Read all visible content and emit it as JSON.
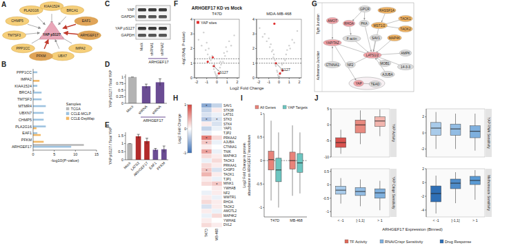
{
  "panel_labels": [
    "A",
    "B",
    "C",
    "D",
    "E",
    "F",
    "G",
    "H",
    "I",
    "J"
  ],
  "diagrams": {
    "network": {
      "center": "YAP pS127",
      "nodes": [
        {
          "label": "KIAA1524",
          "highlight": false
        },
        {
          "label": "BRCA1",
          "highlight": false
        },
        {
          "label": "EAF1",
          "highlight": true
        },
        {
          "label": "ARHGEF17",
          "highlight": true
        },
        {
          "label": "IMPA2",
          "highlight": false
        },
        {
          "label": "UBX7",
          "highlight": false
        },
        {
          "label": "PFKM",
          "highlight": true
        },
        {
          "label": "PPP1CC",
          "highlight": false
        },
        {
          "label": "TM7SF3",
          "highlight": false
        },
        {
          "label": "CHMP5",
          "highlight": false
        },
        {
          "label": "PLA2G16",
          "highlight": false
        }
      ]
    },
    "blot": {
      "groups": [
        [
          "YAP",
          "GAPDH"
        ],
        [
          "YAP pS127",
          "GAPDH"
        ]
      ],
      "lanes": [
        "Mock",
        "shRNA1",
        "shRNA2"
      ],
      "lane_group": "ARHGEF17"
    },
    "pathway": {
      "regions": [
        "Tight Junction",
        "Adherence Junction"
      ],
      "nodes": [
        {
          "label": "GPCR",
          "kind": "other"
        },
        {
          "label": "RASSF1A",
          "kind": "kinase"
        },
        {
          "label": "TAOK1",
          "kind": "kinase"
        },
        {
          "label": "RHOA",
          "kind": "core"
        },
        {
          "label": "PKA",
          "kind": "other"
        },
        {
          "label": "MST1/2",
          "kind": "kinase"
        },
        {
          "label": "TAOK2",
          "kind": "kinase"
        },
        {
          "label": "MAP4K",
          "kind": "kinase"
        },
        {
          "label": "AMOT",
          "kind": "core"
        },
        {
          "label": "YAP/TAZ",
          "kind": "core"
        },
        {
          "label": "F-actin",
          "kind": "other"
        },
        {
          "label": "SAV1",
          "kind": "other"
        },
        {
          "label": "CTNNA1",
          "kind": "other"
        },
        {
          "label": "NF2",
          "kind": "other"
        },
        {
          "label": "LATS1/2",
          "kind": "core"
        },
        {
          "label": "MOB1",
          "kind": "other"
        },
        {
          "label": "AMPK",
          "kind": "other"
        },
        {
          "label": "AJUBA",
          "kind": "other"
        },
        {
          "label": "14-3-3",
          "kind": "other"
        },
        {
          "label": "YAP",
          "kind": "core"
        },
        {
          "label": "TEAD",
          "kind": "other"
        }
      ],
      "edges": [
        [
          0,
          3
        ],
        [
          0,
          4
        ],
        [
          3,
          10
        ],
        [
          4,
          14
        ],
        [
          1,
          5
        ],
        [
          2,
          5
        ],
        [
          6,
          5
        ],
        [
          7,
          14
        ],
        [
          5,
          14
        ],
        [
          11,
          14
        ],
        [
          15,
          14
        ],
        [
          13,
          14
        ],
        [
          10,
          14
        ],
        [
          16,
          14
        ],
        [
          17,
          14
        ],
        [
          14,
          9
        ],
        [
          14,
          18
        ],
        [
          8,
          9
        ],
        [
          12,
          9
        ],
        [
          9,
          19
        ],
        [
          19,
          20
        ]
      ]
    }
  },
  "chart_data": [
    {
      "type": "bar",
      "orientation": "horizontal",
      "categories": [
        "PPP1CC",
        "IMPA2",
        "KIAA1524",
        "BRCA1",
        "TM7SF3",
        "MTMR4",
        "UBXN7",
        "CHMP5",
        "PLA2G16",
        "EAF1",
        "PFKM",
        "ARHGEF17"
      ],
      "series": [
        {
          "name": "TCGA",
          "color": "#b9b9b9",
          "values": [
            0,
            0,
            0,
            0.3,
            0,
            0,
            0,
            0,
            0,
            0,
            0,
            12
          ]
        },
        {
          "name": "CCLE-MCLP",
          "color": "#9ec3e0",
          "values": [
            1.0,
            0,
            1.0,
            2.0,
            2.0,
            3.0,
            2.5,
            2.5,
            3.0,
            1.0,
            0,
            9
          ]
        },
        {
          "name": "CCLE-DepMap",
          "color": "#f2b866",
          "values": [
            0,
            1.5,
            0,
            0,
            0,
            0,
            0,
            0,
            0.8,
            1.8,
            2.5,
            0
          ]
        }
      ],
      "xlabel": "-log10(P-value)",
      "xlim": [
        0,
        15
      ],
      "xticks": [
        0,
        5,
        10,
        15
      ],
      "legend_title": "Samples",
      "legend": "right"
    },
    {
      "type": "bar",
      "categories": [
        "Mock",
        "shRNA",
        "shRNA"
      ],
      "values": [
        1,
        0.65,
        0.8
      ],
      "errors": [
        0,
        0.08,
        0.13
      ],
      "colors": [
        "#b3b3b3",
        "#6a4c93",
        "#6a4c93"
      ],
      "ylabel": "YAP pS127 / Total YAP",
      "ylim": [
        0,
        1.1
      ],
      "yticks": [
        0,
        0.25,
        0.5,
        0.75,
        1
      ],
      "annotations": [
        {
          "text": "ARHGEF17"
        }
      ]
    },
    {
      "type": "bar",
      "categories": [
        "Mock",
        "LATS2",
        "ARHGEF17",
        "EAF1",
        "PFKM"
      ],
      "values": [
        1,
        1.45,
        1.15,
        0.62,
        0.65
      ],
      "errors": [
        0,
        0.12,
        0.18,
        0.08,
        0.2
      ],
      "colors": [
        "#b3b3b3",
        "#b22b2b",
        "#b22b2b",
        "#6a4c93",
        "#6a4c93"
      ],
      "ylabel": "YAP pS127 / Total YAP",
      "ylim": [
        0,
        1.7
      ],
      "yticks": [
        0,
        0.5,
        1,
        1.5
      ]
    },
    {
      "type": "scatter",
      "title": "ARHGEF17 KD vs Mock",
      "subtitle": "T47D",
      "xlabel": "Log2 Fold Change",
      "ylabel": "-log10(Adj. P-value)",
      "xlim": [
        -2.2,
        2.2
      ],
      "xticks": [
        -2,
        -1,
        0,
        1,
        2
      ],
      "ylim": [
        0,
        4
      ],
      "yticks": [
        0,
        1,
        2,
        3,
        4
      ],
      "hlines": [
        1,
        1.3
      ],
      "series": [
        {
          "color": "#c4c4c4",
          "x": [
            -1.8,
            -1.5,
            -1.3,
            -1.1,
            -1.0,
            -0.9,
            -0.8,
            -0.7,
            -0.6,
            -0.5,
            -0.45,
            -0.4,
            -0.3,
            -0.25,
            -0.2,
            -0.15,
            -0.1,
            -0.05,
            0,
            0.05,
            0.1,
            0.15,
            0.2,
            0.3,
            0.35,
            0.4,
            0.5,
            0.6,
            0.7,
            0.8,
            0.9,
            1.0,
            1.2,
            1.4,
            1.7
          ],
          "values": [
            2.6,
            2.2,
            3.1,
            1.9,
            2.4,
            1.6,
            2.0,
            1.4,
            1.2,
            1.0,
            1.5,
            0.8,
            0.6,
            0.9,
            0.4,
            0.3,
            0.2,
            0.1,
            0.05,
            0.15,
            0.3,
            0.5,
            0.35,
            0.7,
            1.1,
            0.9,
            1.3,
            1.1,
            1.7,
            1.5,
            2.1,
            1.8,
            2.5,
            2.2,
            2.9
          ]
        },
        {
          "name": "YAP sites",
          "color": "#e03030",
          "x": [
            -0.9,
            -0.4,
            -0.3,
            0.2
          ],
          "values": [
            1.1,
            1.4,
            0.8,
            0.3
          ]
        }
      ],
      "annotations": [
        {
          "text": "S127",
          "x": -0.3,
          "y": 0.8
        }
      ]
    },
    {
      "type": "scatter",
      "subtitle": "MDA-MB-468",
      "xlim": [
        -2.2,
        2.2
      ],
      "xticks": [
        -2,
        -1,
        0,
        1,
        2
      ],
      "ylim": [
        0,
        4
      ],
      "yticks": [
        0,
        1,
        2,
        3,
        4
      ],
      "hlines": [
        1,
        1.3
      ],
      "series": [
        {
          "color": "#c4c4c4",
          "x": [
            -1.9,
            -1.6,
            -1.4,
            -1.2,
            -1.0,
            -0.9,
            -0.8,
            -0.7,
            -0.6,
            -0.55,
            -0.5,
            -0.4,
            -0.35,
            -0.3,
            -0.2,
            -0.15,
            -0.1,
            -0.05,
            0,
            0.05,
            0.1,
            0.15,
            0.2,
            0.25,
            0.3,
            0.4,
            0.5,
            0.6,
            0.7,
            0.8,
            1.0,
            1.1,
            1.3,
            1.5,
            1.8
          ],
          "values": [
            3.4,
            2.8,
            3.0,
            2.5,
            2.7,
            2.1,
            2.3,
            1.8,
            1.9,
            1.4,
            1.6,
            1.2,
            0.9,
            0.8,
            0.5,
            0.4,
            0.2,
            0.1,
            0.05,
            0.1,
            0.25,
            0.35,
            0.6,
            0.5,
            0.9,
            1.0,
            1.3,
            1.2,
            1.6,
            1.9,
            2.2,
            2.0,
            2.6,
            2.4,
            3.2
          ]
        },
        {
          "color": "#e03030",
          "x": [
            -0.45,
            -0.3,
            0.1,
            0.35
          ],
          "values": [
            3.7,
            1.0,
            0.3,
            0.5
          ]
        }
      ],
      "annotations": [
        {
          "text": "S127",
          "x": -0.3,
          "y": 1.0
        }
      ]
    },
    {
      "type": "heatmap",
      "rows": [
        "SAV1",
        "STK38",
        "LATS1",
        "STK3",
        "STK4",
        "YAP1",
        "TJP2",
        "PRKAA2",
        "AJUBA",
        "CTNNA1",
        "TNIK",
        "MAP4K3",
        "TAOK3",
        "PRKAA1",
        "CASP3",
        "TAOK1",
        "TJP1",
        "MINK1",
        "YWHAB",
        "NF2",
        "WWTR1",
        "RHOA",
        "TAOK2",
        "AMOTL2",
        "MAP4K2",
        "YWHAE",
        "DVL2"
      ],
      "columns": [
        "T47D",
        "MB-468"
      ],
      "cells": [
        [
          -0.6,
          -0.3
        ],
        [
          -0.3,
          0.1
        ],
        [
          -0.2,
          -0.1
        ],
        [
          -0.4,
          -0.2
        ],
        [
          0.1,
          -0.2
        ],
        [
          -0.3,
          -0.1
        ],
        [
          -0.1,
          0.0
        ],
        [
          0.7,
          0.2
        ],
        [
          0.3,
          -0.1
        ],
        [
          0.1,
          0.0
        ],
        [
          0.5,
          -0.1
        ],
        [
          0.2,
          0.1
        ],
        [
          -0.1,
          0.2
        ],
        [
          0.2,
          0.1
        ],
        [
          0.3,
          -0.2
        ],
        [
          0.4,
          0.1
        ],
        [
          0.1,
          -0.1
        ],
        [
          0.2,
          0.3
        ],
        [
          0,
          0.1
        ],
        [
          -0.1,
          0.1
        ],
        [
          0.1,
          -0.1
        ],
        [
          0.2,
          0.1
        ],
        [
          -0.2,
          0.1
        ],
        [
          0.1,
          -0.1
        ],
        [
          -0.1,
          0.2
        ],
        [
          0.1,
          0
        ],
        [
          0.2,
          0.1
        ]
      ],
      "cell_labels": [
        [
          "*",
          null
        ],
        [
          null,
          null
        ],
        [
          null,
          null
        ],
        [
          "*",
          "*"
        ],
        [
          null,
          null
        ],
        [
          null,
          null
        ],
        [
          null,
          null
        ],
        [
          "*",
          null
        ],
        [
          "*",
          null
        ],
        [
          null,
          null
        ],
        [
          "*",
          null
        ],
        [
          null,
          null
        ],
        [
          null,
          null
        ],
        [
          null,
          null
        ],
        [
          "*",
          null
        ],
        [
          null,
          null
        ],
        [
          null,
          null
        ],
        [
          null,
          "*"
        ],
        [
          null,
          null
        ],
        [
          null,
          null
        ],
        [
          null,
          null
        ],
        [
          null,
          null
        ],
        [
          null,
          null
        ],
        [
          null,
          null
        ],
        [
          null,
          null
        ],
        [
          null,
          null
        ],
        [
          null,
          null
        ]
      ],
      "colorbar_label": "Log2 Fold Change",
      "colorbar_lim": [
        -1,
        1
      ],
      "colorbar_ticks": [
        -1,
        0,
        1
      ]
    },
    {
      "type": "box",
      "categories": [
        "T47D",
        "MB-468"
      ],
      "ylabel": "Log2 Fold Change in protein abundance on ARHGEF17 knockdown",
      "ylim": [
        -1.2,
        1.0
      ],
      "yticks": [
        -1,
        -0.5,
        0,
        0.5,
        1
      ],
      "hlines": [
        0
      ],
      "series": [
        {
          "name": "All Genes",
          "color": "#e8837a",
          "values": [
            [
              -0.85,
              -0.2,
              0.02,
              0.2,
              0.85
            ],
            [
              -0.75,
              -0.18,
              0.0,
              0.18,
              0.75
            ]
          ]
        },
        {
          "name": "YAP Targets",
          "color": "#6cc5c0",
          "values": [
            [
              -1.0,
              -0.45,
              -0.2,
              0.05,
              0.6
            ],
            [
              -0.7,
              -0.25,
              -0.05,
              0.15,
              0.6
            ]
          ]
        }
      ]
    },
    {
      "type": "box",
      "title": "YAP Activity",
      "ylim": [
        -10,
        5
      ],
      "yticks": [
        -10,
        -5,
        0,
        5
      ],
      "series": [
        {
          "name": "TF Activity",
          "color": "#e06a5a",
          "colors": [
            "#d9534f",
            "#e88a80",
            "#f2b5ae"
          ],
          "values": [
            [
              -9,
              -7,
              -5.5,
              -4,
              -1.5
            ],
            [
              -6,
              -2.5,
              0,
              1.5,
              4.5
            ],
            [
              -3.5,
              -0.5,
              1.2,
              2.5,
              4.8
            ]
          ]
        }
      ]
    },
    {
      "type": "box",
      "title": "YAP RNAi Sensitivity",
      "ylim": [
        -3,
        3
      ],
      "yticks": [
        -2,
        0,
        2
      ],
      "series": [
        {
          "name": "RNAi/Crispr Sensitivity",
          "color": "#7fb0de",
          "colors": [
            "#a9cbea",
            "#93bde4",
            "#7fb0de"
          ],
          "values": [
            [
              -2,
              -0.3,
              0.6,
              1.3,
              2.6
            ],
            [
              -2,
              -0.3,
              0.5,
              1.1,
              2.4
            ],
            [
              -2.2,
              -0.6,
              0.2,
              0.9,
              2.4
            ]
          ]
        }
      ]
    },
    {
      "type": "box",
      "title": "YAP Crispr Sensitivity",
      "categories": [
        "< -1",
        "[-1,1]",
        "> 1"
      ],
      "xlabel": "ARHGEF17 Expression (Binned)",
      "ylim": [
        -1.2,
        0.6
      ],
      "yticks": [
        -1,
        -0.5,
        0,
        0.5
      ],
      "series": [
        {
          "name": "RNAi/Crispr Sensitivity",
          "color": "#7fb0de",
          "colors": [
            "#a9cbea",
            "#93bde4",
            "#7fb0de"
          ],
          "values": [
            [
              -0.7,
              -0.35,
              -0.2,
              -0.05,
              0.25
            ],
            [
              -0.8,
              -0.4,
              -0.25,
              -0.1,
              0.2
            ],
            [
              -0.95,
              -0.5,
              -0.3,
              -0.15,
              0.15
            ]
          ]
        }
      ]
    },
    {
      "type": "box",
      "title": "Methotrexate Sensitivity",
      "categories": [
        "< -1",
        "[-1,1]",
        "> 1"
      ],
      "ylim": [
        -5,
        2
      ],
      "yticks": [
        -4,
        -2,
        0,
        2
      ],
      "series": [
        {
          "name": "Drug Response",
          "color": "#2f6fb5",
          "colors": [
            "#2f6fb5",
            "#4f8cc9",
            "#5b9bd5"
          ],
          "values": [
            [
              -4.5,
              -2.8,
              -1.6,
              -0.5,
              1
            ],
            [
              -3,
              -0.9,
              -0.1,
              0.5,
              1.5
            ],
            [
              -2.5,
              -0.3,
              0.3,
              0.9,
              1.8
            ]
          ]
        }
      ]
    }
  ]
}
